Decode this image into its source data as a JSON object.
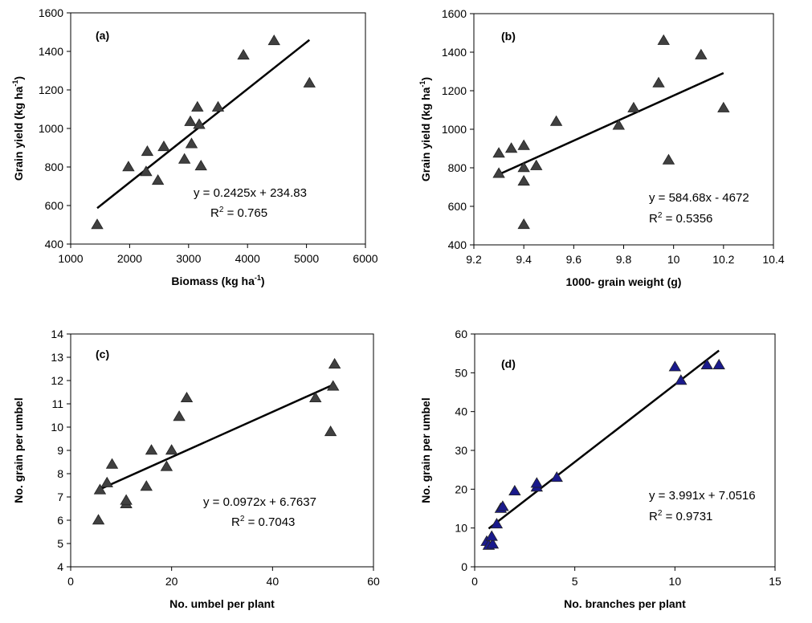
{
  "chart_data": [
    {
      "type": "scatter",
      "panel_label": "(a)",
      "xlabel": "Biomass (kg ha",
      "xlabel_sup": "-1",
      "xlabel_end": ")",
      "ylabel": "Grain yield (kg ha",
      "ylabel_sup": "-1",
      "ylabel_end": ")",
      "xlim": [
        1000,
        6000
      ],
      "ylim": [
        400,
        1600
      ],
      "xticks": [
        1000,
        2000,
        3000,
        4000,
        5000,
        6000
      ],
      "yticks": [
        400,
        600,
        800,
        1000,
        1200,
        1400,
        1600
      ],
      "xtick_labels": [
        "1000",
        "2000",
        "3000",
        "4000",
        "5000",
        "6000"
      ],
      "ytick_labels": [
        "400",
        "600",
        "800",
        "1000",
        "1200",
        "1400",
        "1600"
      ],
      "equation": "y = 0.2425x + 234.83",
      "r2_prefix": "R",
      "r2_sup": "2",
      "r2_value": " = 0.765",
      "trendline": {
        "x": [
          1450,
          5050
        ],
        "y": [
          586.5,
          1459.5
        ]
      },
      "marker_color": "#404040",
      "points": [
        {
          "x": 1450,
          "y": 500
        },
        {
          "x": 1980,
          "y": 800
        },
        {
          "x": 2280,
          "y": 775
        },
        {
          "x": 2300,
          "y": 880
        },
        {
          "x": 2480,
          "y": 730
        },
        {
          "x": 2580,
          "y": 905
        },
        {
          "x": 2930,
          "y": 840
        },
        {
          "x": 3030,
          "y": 1035
        },
        {
          "x": 3050,
          "y": 920
        },
        {
          "x": 3150,
          "y": 1110
        },
        {
          "x": 3180,
          "y": 1020
        },
        {
          "x": 3210,
          "y": 805
        },
        {
          "x": 3500,
          "y": 1110
        },
        {
          "x": 3930,
          "y": 1380
        },
        {
          "x": 4450,
          "y": 1455
        },
        {
          "x": 5050,
          "y": 1235
        }
      ]
    },
    {
      "type": "scatter",
      "panel_label": "(b)",
      "xlabel": "1000- grain weight (g)",
      "xlabel_sup": "",
      "xlabel_end": "",
      "ylabel": "Grain yield (kg ha",
      "ylabel_sup": "-1",
      "ylabel_end": ")",
      "xlim": [
        9.2,
        10.4
      ],
      "ylim": [
        400,
        1600
      ],
      "xticks": [
        9.2,
        9.4,
        9.6,
        9.8,
        10,
        10.2,
        10.4
      ],
      "yticks": [
        400,
        600,
        800,
        1000,
        1200,
        1400,
        1600
      ],
      "xtick_labels": [
        "9.2",
        "9.4",
        "9.6",
        "9.8",
        "10",
        "10.2",
        "10.4"
      ],
      "ytick_labels": [
        "400",
        "600",
        "800",
        "1000",
        "1200",
        "1400",
        "1600"
      ],
      "equation": "y = 584.68x - 4672",
      "r2_prefix": "R",
      "r2_sup": "2",
      "r2_value": " = 0.5356",
      "trendline": {
        "x": [
          9.3,
          10.2
        ],
        "y": [
          765.5,
          1291.7
        ]
      },
      "marker_color": "#404040",
      "points": [
        {
          "x": 9.3,
          "y": 770
        },
        {
          "x": 9.3,
          "y": 875
        },
        {
          "x": 9.35,
          "y": 900
        },
        {
          "x": 9.4,
          "y": 800
        },
        {
          "x": 9.4,
          "y": 915
        },
        {
          "x": 9.4,
          "y": 730
        },
        {
          "x": 9.4,
          "y": 505
        },
        {
          "x": 9.45,
          "y": 810
        },
        {
          "x": 9.53,
          "y": 1040
        },
        {
          "x": 9.78,
          "y": 1020
        },
        {
          "x": 9.84,
          "y": 1110
        },
        {
          "x": 9.94,
          "y": 1240
        },
        {
          "x": 9.96,
          "y": 1460
        },
        {
          "x": 9.98,
          "y": 840
        },
        {
          "x": 10.11,
          "y": 1385
        },
        {
          "x": 10.2,
          "y": 1110
        }
      ]
    },
    {
      "type": "scatter",
      "panel_label": "(c)",
      "xlabel": "No. umbel per plant",
      "xlabel_sup": "",
      "xlabel_end": "",
      "ylabel": "No. grain per umbel",
      "ylabel_sup": "",
      "ylabel_end": "",
      "xlim": [
        0,
        60
      ],
      "ylim": [
        4,
        14
      ],
      "xticks": [
        0,
        20,
        40,
        60
      ],
      "yticks": [
        4,
        5,
        6,
        7,
        8,
        9,
        10,
        11,
        12,
        13,
        14
      ],
      "xtick_labels": [
        "0",
        "20",
        "40",
        "60"
      ],
      "ytick_labels": [
        "4",
        "5",
        "6",
        "7",
        "8",
        "9",
        "10",
        "11",
        "12",
        "13",
        "14"
      ],
      "equation": "y = 0.0972x + 6.7637",
      "r2_prefix": "R",
      "r2_sup": "2",
      "r2_value": " = 0.7043",
      "trendline": {
        "x": [
          5.8,
          52
        ],
        "y": [
          7.33,
          11.82
        ]
      },
      "marker_color": "#404040",
      "points": [
        {
          "x": 5.5,
          "y": 6.0
        },
        {
          "x": 5.8,
          "y": 7.3
        },
        {
          "x": 7.2,
          "y": 7.6
        },
        {
          "x": 8.2,
          "y": 8.4
        },
        {
          "x": 11,
          "y": 6.7
        },
        {
          "x": 11,
          "y": 6.85
        },
        {
          "x": 15,
          "y": 7.45
        },
        {
          "x": 16,
          "y": 9.0
        },
        {
          "x": 19,
          "y": 8.3
        },
        {
          "x": 20,
          "y": 9.0
        },
        {
          "x": 21.5,
          "y": 10.45
        },
        {
          "x": 23,
          "y": 11.25
        },
        {
          "x": 48.5,
          "y": 11.25
        },
        {
          "x": 51.5,
          "y": 9.8
        },
        {
          "x": 52,
          "y": 11.75
        },
        {
          "x": 52.3,
          "y": 12.7
        }
      ]
    },
    {
      "type": "scatter",
      "panel_label": "(d)",
      "xlabel": "No. branches per plant",
      "xlabel_sup": "",
      "xlabel_end": "",
      "ylabel": "No. grain per umbel",
      "ylabel_sup": "",
      "ylabel_end": "",
      "xlim": [
        0,
        15
      ],
      "ylim": [
        0,
        60
      ],
      "xticks": [
        0,
        5,
        10,
        15
      ],
      "yticks": [
        0,
        10,
        20,
        30,
        40,
        50,
        60
      ],
      "xtick_labels": [
        "0",
        "5",
        "10",
        "15"
      ],
      "ytick_labels": [
        "0",
        "10",
        "20",
        "30",
        "40",
        "50",
        "60"
      ],
      "equation": "y = 3.991x + 7.0516",
      "r2_prefix": "R",
      "r2_sup": "2",
      "r2_value": " = 0.9731",
      "trendline": {
        "x": [
          0.7,
          12.2
        ],
        "y": [
          9.85,
          55.74
        ]
      },
      "marker_color": "#1a1a8c",
      "points": [
        {
          "x": 0.6,
          "y": 6.5
        },
        {
          "x": 0.7,
          "y": 5.5
        },
        {
          "x": 0.9,
          "y": 5.8
        },
        {
          "x": 0.85,
          "y": 7.8
        },
        {
          "x": 1.1,
          "y": 11
        },
        {
          "x": 1.3,
          "y": 15
        },
        {
          "x": 1.4,
          "y": 15.5
        },
        {
          "x": 2.0,
          "y": 19.5
        },
        {
          "x": 3.1,
          "y": 20.5
        },
        {
          "x": 3.1,
          "y": 21.5
        },
        {
          "x": 4.1,
          "y": 23
        },
        {
          "x": 10,
          "y": 51.5
        },
        {
          "x": 10.3,
          "y": 48
        },
        {
          "x": 11.6,
          "y": 52
        },
        {
          "x": 12.2,
          "y": 52
        }
      ]
    }
  ]
}
